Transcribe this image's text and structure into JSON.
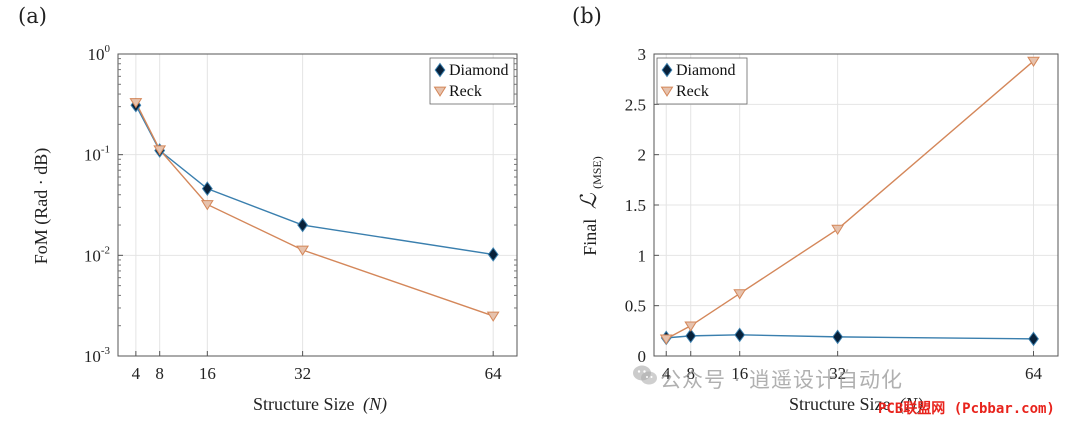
{
  "chart_data": [
    {
      "panel_label": "(a)",
      "type": "line",
      "yscale": "log",
      "xlabel": "Structure Size",
      "xlabel_var": "(N)",
      "ylabel": "FoM (Rad · dB)",
      "x": [
        4,
        8,
        16,
        32,
        64
      ],
      "xticks": [
        "4",
        "8",
        "16",
        "32",
        "64"
      ],
      "xlim": [
        1,
        68
      ],
      "ylim": [
        0.001,
        1
      ],
      "yticks": [
        {
          "value": 1,
          "base": "10",
          "exp": "0"
        },
        {
          "value": 0.1,
          "base": "10",
          "exp": "-1"
        },
        {
          "value": 0.01,
          "base": "10",
          "exp": "-2"
        },
        {
          "value": 0.001,
          "base": "10",
          "exp": "-3"
        }
      ],
      "legend_position": "top-right",
      "series": [
        {
          "name": "Diamond",
          "marker": "diamond",
          "color": "#3a7fae",
          "marker_fill": "#08213a",
          "values": [
            0.31,
            0.11,
            0.046,
            0.02,
            0.0102
          ]
        },
        {
          "name": "Reck",
          "marker": "triangle-down",
          "color": "#d4875a",
          "marker_fill": "#e6c2ad",
          "values": [
            0.33,
            0.112,
            0.032,
            0.0113,
            0.0025
          ]
        }
      ]
    },
    {
      "panel_label": "(b)",
      "type": "line",
      "yscale": "linear",
      "xlabel": "Structure Size",
      "xlabel_var": "(N)",
      "ylabel": "Final",
      "ylabel_symbol": "ℒ",
      "ylabel_sub": "(MSE)",
      "x": [
        4,
        8,
        16,
        32,
        64
      ],
      "xticks": [
        "4",
        "8",
        "16",
        "32",
        "64"
      ],
      "xlim": [
        2,
        68
      ],
      "ylim": [
        0,
        3
      ],
      "yticks": [
        "0",
        "0.5",
        "1",
        "1.5",
        "2",
        "2.5",
        "3"
      ],
      "ytick_values": [
        0,
        0.5,
        1,
        1.5,
        2,
        2.5,
        3
      ],
      "legend_position": "top-left",
      "series": [
        {
          "name": "Diamond",
          "marker": "diamond",
          "color": "#3a7fae",
          "marker_fill": "#08213a",
          "values": [
            0.18,
            0.2,
            0.21,
            0.19,
            0.17
          ]
        },
        {
          "name": "Reck",
          "marker": "triangle-down",
          "color": "#d4875a",
          "marker_fill": "#e6c2ad",
          "values": [
            0.17,
            0.3,
            0.62,
            1.26,
            2.93
          ]
        }
      ]
    }
  ],
  "watermark": {
    "text": "公众号 · 逍遥设计自动化",
    "subtext": "PCB联盟网 (Pcbbar.com)"
  }
}
